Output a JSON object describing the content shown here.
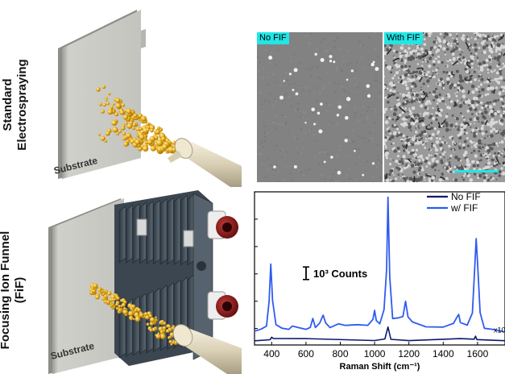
{
  "row_labels": {
    "top": [
      "Standard",
      "Electrospraying"
    ],
    "bottom": [
      "Focusing Ion Funnel",
      "(FiF)"
    ]
  },
  "substrate_label_top": "Substrate",
  "substrate_label_bottom": "Substrate",
  "sem_panels": {
    "left_tag": "No FIF",
    "right_tag": "With FIF",
    "scale_bar_color": "#22e6e6"
  },
  "colors": {
    "label_bg": "#22e6e6",
    "no_fif_line": "#0a1a6e",
    "with_fif_line": "#2f5bf0",
    "particle": "#e8b020",
    "substrate": "#c8c8c2",
    "funnel": "#4a5560",
    "connector": "#8a1a1a",
    "nozzle": "#e5dcc4"
  },
  "chart_data": {
    "type": "line",
    "xlabel": "Raman Shift (cm⁻¹)",
    "xlim": [
      300,
      1760
    ],
    "xticks": [
      400,
      600,
      800,
      1000,
      1200,
      1400,
      1600
    ],
    "scale_label": "10³ Counts",
    "multiplier_label": "x10",
    "legend_position": "top-right",
    "series": [
      {
        "name": "No FIF",
        "x": [
          300,
          390,
          400,
          410,
          600,
          1000,
          1060,
          1078,
          1095,
          1200,
          1500,
          1580,
          1588,
          1596,
          1760
        ],
        "y": [
          0.35,
          0.37,
          0.55,
          0.37,
          0.36,
          0.35,
          0.37,
          1.2,
          0.37,
          0.36,
          0.36,
          0.37,
          0.6,
          0.37,
          0.35
        ]
      },
      {
        "name": "w/ FIF",
        "x": [
          300,
          340,
          370,
          385,
          395,
          405,
          425,
          460,
          500,
          520,
          560,
          600,
          625,
          640,
          655,
          680,
          700,
          715,
          740,
          790,
          830,
          900,
          960,
          990,
          1000,
          1010,
          1030,
          1055,
          1070,
          1078,
          1088,
          1105,
          1140,
          1165,
          1180,
          1195,
          1220,
          1300,
          1400,
          1460,
          1480,
          1490,
          1500,
          1540,
          1570,
          1585,
          1592,
          1600,
          1615,
          1640,
          1700,
          1760
        ],
        "y": [
          1.0,
          1.0,
          1.3,
          3.0,
          5.4,
          3.0,
          1.3,
          1.05,
          1.1,
          1.35,
          1.1,
          1.05,
          1.2,
          1.85,
          1.25,
          1.4,
          1.95,
          1.4,
          1.25,
          1.5,
          1.3,
          1.3,
          1.4,
          1.7,
          2.3,
          1.7,
          1.5,
          2.3,
          5.0,
          10.0,
          4.5,
          1.7,
          1.75,
          2.0,
          3.0,
          1.9,
          1.55,
          1.3,
          1.25,
          1.4,
          1.8,
          2.1,
          1.5,
          1.4,
          2.2,
          5.5,
          7.2,
          5.5,
          2.1,
          1.2,
          0.95,
          0.95
        ]
      }
    ],
    "scale_bar_counts": 1
  }
}
